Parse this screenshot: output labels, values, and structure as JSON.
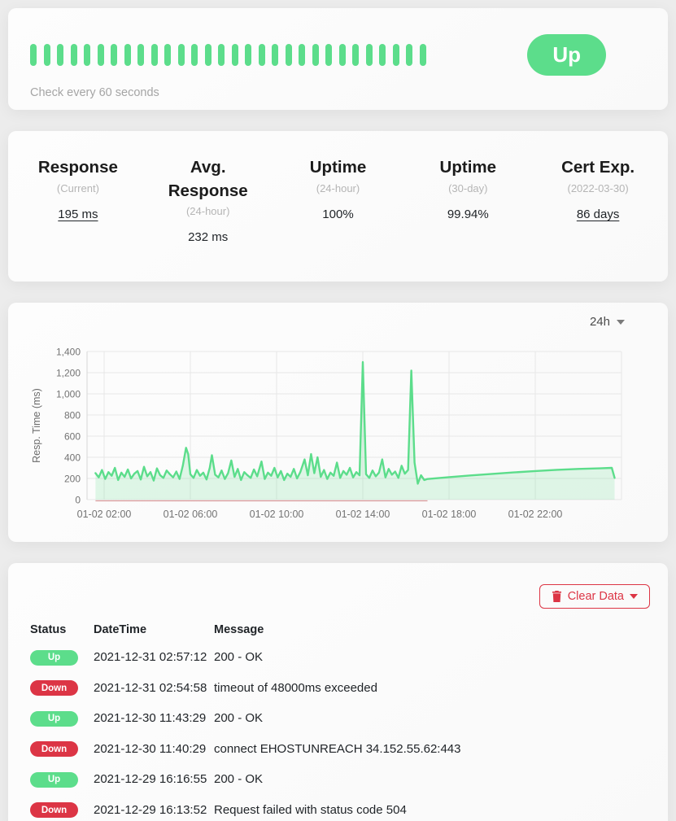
{
  "colors": {
    "up_green": "#5cdd8b",
    "down_red": "#dc3545",
    "chart_fill": "rgba(92,221,139,0.18)",
    "chart_down_line": "rgba(196,92,92,0.6)",
    "grid": "#e7e7e7",
    "axis_text": "#737373"
  },
  "monitor": {
    "status_badge": "Up",
    "check_interval_text": "Check every 60 seconds",
    "heartbeat": {
      "count": 30,
      "all_status": "up"
    }
  },
  "stats": {
    "items": [
      {
        "title": "Response",
        "subtitle": "(Current)",
        "value": "195 ms",
        "underline": true
      },
      {
        "title": "Avg. Response",
        "subtitle": "(24-hour)",
        "value": "232 ms",
        "underline": false
      },
      {
        "title": "Uptime",
        "subtitle": "(24-hour)",
        "value": "100%",
        "underline": false
      },
      {
        "title": "Uptime",
        "subtitle": "(30-day)",
        "value": "99.94%",
        "underline": false
      },
      {
        "title": "Cert Exp.",
        "subtitle": "(2022-03-30)",
        "value": "86 days",
        "underline": true
      }
    ]
  },
  "chart": {
    "period_label": "24h"
  },
  "chart_data": {
    "type": "area",
    "title": "",
    "xlabel": "",
    "ylabel": "Resp. Time (ms)",
    "ylim": [
      0,
      1400
    ],
    "grid": true,
    "y_ticks": [
      {
        "value": 0,
        "label": "0"
      },
      {
        "value": 200,
        "label": "200"
      },
      {
        "value": 400,
        "label": "400"
      },
      {
        "value": 600,
        "label": "600"
      },
      {
        "value": 800,
        "label": "800"
      },
      {
        "value": 1000,
        "label": "1,000"
      },
      {
        "value": 1200,
        "label": "1,200"
      },
      {
        "value": 1400,
        "label": "1,400"
      }
    ],
    "x_ticks": [
      {
        "hour": 2,
        "label": "01-02 02:00"
      },
      {
        "hour": 6,
        "label": "01-02 06:00"
      },
      {
        "hour": 10,
        "label": "01-02 10:00"
      },
      {
        "hour": 14,
        "label": "01-02 14:00"
      },
      {
        "hour": 18,
        "label": "01-02 18:00"
      },
      {
        "hour": 22,
        "label": "01-02 22:00"
      },
      {
        "hour": 26,
        "label": ""
      }
    ],
    "x_domain_hours": [
      1.2,
      26.0
    ],
    "down_segment_hours": [
      1.6,
      17.0
    ],
    "series": [
      {
        "name": "resp_time_ms",
        "points": [
          [
            1.6,
            250
          ],
          [
            1.75,
            210
          ],
          [
            1.9,
            280
          ],
          [
            2.05,
            195
          ],
          [
            2.2,
            260
          ],
          [
            2.35,
            225
          ],
          [
            2.5,
            300
          ],
          [
            2.65,
            185
          ],
          [
            2.8,
            255
          ],
          [
            2.95,
            215
          ],
          [
            3.1,
            285
          ],
          [
            3.25,
            200
          ],
          [
            3.4,
            245
          ],
          [
            3.55,
            270
          ],
          [
            3.7,
            190
          ],
          [
            3.85,
            310
          ],
          [
            4.0,
            220
          ],
          [
            4.15,
            260
          ],
          [
            4.3,
            180
          ],
          [
            4.45,
            295
          ],
          [
            4.6,
            230
          ],
          [
            4.75,
            205
          ],
          [
            4.9,
            275
          ],
          [
            5.05,
            240
          ],
          [
            5.2,
            210
          ],
          [
            5.35,
            265
          ],
          [
            5.5,
            195
          ],
          [
            5.65,
            320
          ],
          [
            5.8,
            490
          ],
          [
            5.9,
            430
          ],
          [
            6.0,
            240
          ],
          [
            6.15,
            205
          ],
          [
            6.3,
            280
          ],
          [
            6.45,
            225
          ],
          [
            6.6,
            255
          ],
          [
            6.75,
            190
          ],
          [
            6.9,
            300
          ],
          [
            7.0,
            420
          ],
          [
            7.15,
            235
          ],
          [
            7.3,
            210
          ],
          [
            7.45,
            275
          ],
          [
            7.6,
            195
          ],
          [
            7.75,
            250
          ],
          [
            7.9,
            370
          ],
          [
            8.05,
            215
          ],
          [
            8.2,
            290
          ],
          [
            8.35,
            185
          ],
          [
            8.5,
            260
          ],
          [
            8.65,
            230
          ],
          [
            8.8,
            205
          ],
          [
            8.95,
            285
          ],
          [
            9.1,
            220
          ],
          [
            9.3,
            360
          ],
          [
            9.45,
            195
          ],
          [
            9.6,
            255
          ],
          [
            9.75,
            225
          ],
          [
            9.9,
            300
          ],
          [
            10.05,
            210
          ],
          [
            10.2,
            270
          ],
          [
            10.35,
            185
          ],
          [
            10.5,
            245
          ],
          [
            10.65,
            215
          ],
          [
            10.8,
            290
          ],
          [
            10.95,
            200
          ],
          [
            11.1,
            260
          ],
          [
            11.3,
            380
          ],
          [
            11.45,
            230
          ],
          [
            11.6,
            430
          ],
          [
            11.75,
            250
          ],
          [
            11.9,
            400
          ],
          [
            12.05,
            215
          ],
          [
            12.2,
            280
          ],
          [
            12.35,
            195
          ],
          [
            12.5,
            255
          ],
          [
            12.65,
            225
          ],
          [
            12.8,
            350
          ],
          [
            12.95,
            205
          ],
          [
            13.1,
            270
          ],
          [
            13.25,
            235
          ],
          [
            13.4,
            300
          ],
          [
            13.55,
            210
          ],
          [
            13.7,
            260
          ],
          [
            13.85,
            230
          ],
          [
            14.0,
            1300
          ],
          [
            14.15,
            240
          ],
          [
            14.3,
            205
          ],
          [
            14.45,
            275
          ],
          [
            14.6,
            220
          ],
          [
            14.75,
            255
          ],
          [
            14.9,
            380
          ],
          [
            15.05,
            210
          ],
          [
            15.2,
            290
          ],
          [
            15.35,
            235
          ],
          [
            15.5,
            265
          ],
          [
            15.65,
            205
          ],
          [
            15.8,
            320
          ],
          [
            15.95,
            245
          ],
          [
            16.1,
            280
          ],
          [
            16.25,
            1220
          ],
          [
            16.4,
            350
          ],
          [
            16.55,
            150
          ],
          [
            16.7,
            230
          ],
          [
            16.85,
            185
          ],
          [
            17.0,
            195
          ],
          [
            18.0,
            212
          ],
          [
            19.0,
            228
          ],
          [
            20.0,
            243
          ],
          [
            21.0,
            257
          ],
          [
            22.0,
            270
          ],
          [
            23.0,
            281
          ],
          [
            24.0,
            290
          ],
          [
            25.0,
            296
          ],
          [
            25.55,
            300
          ],
          [
            25.68,
            205
          ]
        ]
      }
    ]
  },
  "events": {
    "clear_button": {
      "label": "Clear Data",
      "icon": "trash-icon"
    },
    "columns": [
      "Status",
      "DateTime",
      "Message"
    ],
    "rows": [
      {
        "status": "Up",
        "datetime": "2021-12-31 02:57:12",
        "message": "200 - OK"
      },
      {
        "status": "Down",
        "datetime": "2021-12-31 02:54:58",
        "message": "timeout of 48000ms exceeded"
      },
      {
        "status": "Up",
        "datetime": "2021-12-30 11:43:29",
        "message": "200 - OK"
      },
      {
        "status": "Down",
        "datetime": "2021-12-30 11:40:29",
        "message": "connect EHOSTUNREACH 34.152.55.62:443"
      },
      {
        "status": "Up",
        "datetime": "2021-12-29 16:16:55",
        "message": "200 - OK"
      },
      {
        "status": "Down",
        "datetime": "2021-12-29 16:13:52",
        "message": "Request failed with status code 504"
      }
    ]
  }
}
